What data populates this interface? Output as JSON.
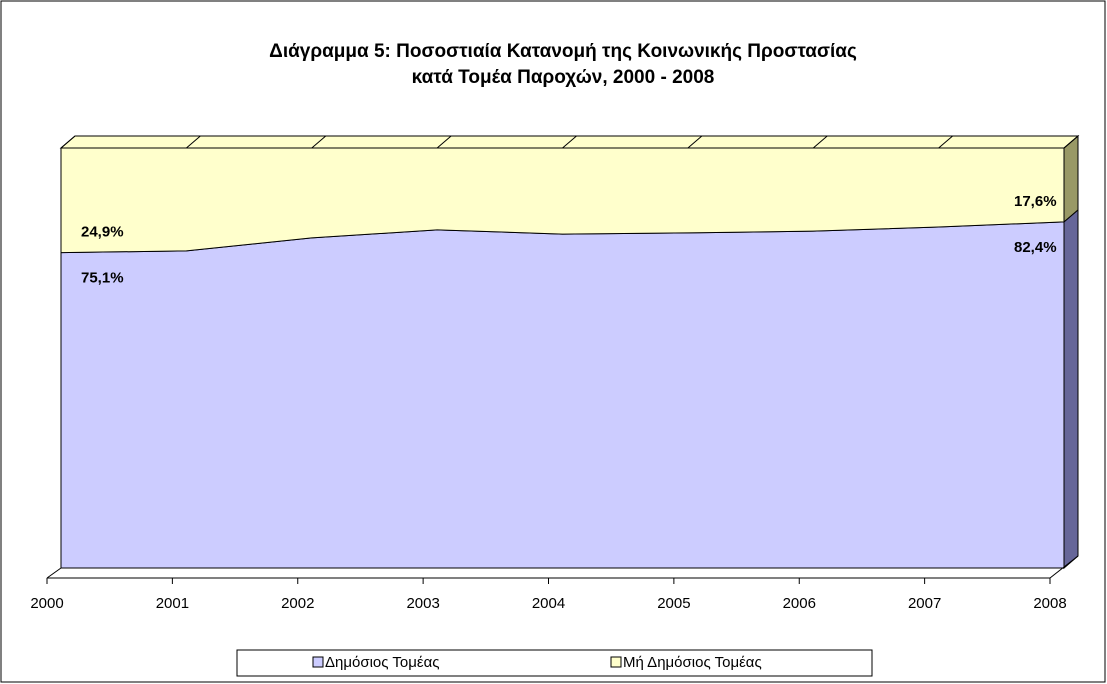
{
  "chart_data": {
    "type": "area",
    "stacked": true,
    "title": [
      "Διάγραμμα 5: Ποσοστιαία Κατανομή της Κοινωνικής Προστασίας",
      "κατά Τομέα Παροχών, 2000 - 2008"
    ],
    "categories": [
      "2000",
      "2001",
      "2002",
      "2003",
      "2004",
      "2005",
      "2006",
      "2007",
      "2008"
    ],
    "ylim": [
      0,
      100
    ],
    "series": [
      {
        "name": "Δημόσιος Τομέας",
        "color": "#ccccff",
        "side_color": "#666699",
        "values": [
          75.1,
          75.5,
          78.6,
          80.5,
          79.5,
          79.8,
          80.2,
          81.2,
          82.4
        ],
        "value_labels": [
          "75,1%",
          null,
          null,
          null,
          null,
          null,
          null,
          null,
          "82,4%"
        ]
      },
      {
        "name": "Μή Δημόσιος Τομέας",
        "color": "#ffffcc",
        "side_color": "#999966",
        "values": [
          24.9,
          24.5,
          21.4,
          19.5,
          20.5,
          20.2,
          19.8,
          18.8,
          17.6
        ],
        "value_labels": [
          "24,9%",
          null,
          null,
          null,
          null,
          null,
          null,
          null,
          "17,6%"
        ]
      }
    ]
  }
}
